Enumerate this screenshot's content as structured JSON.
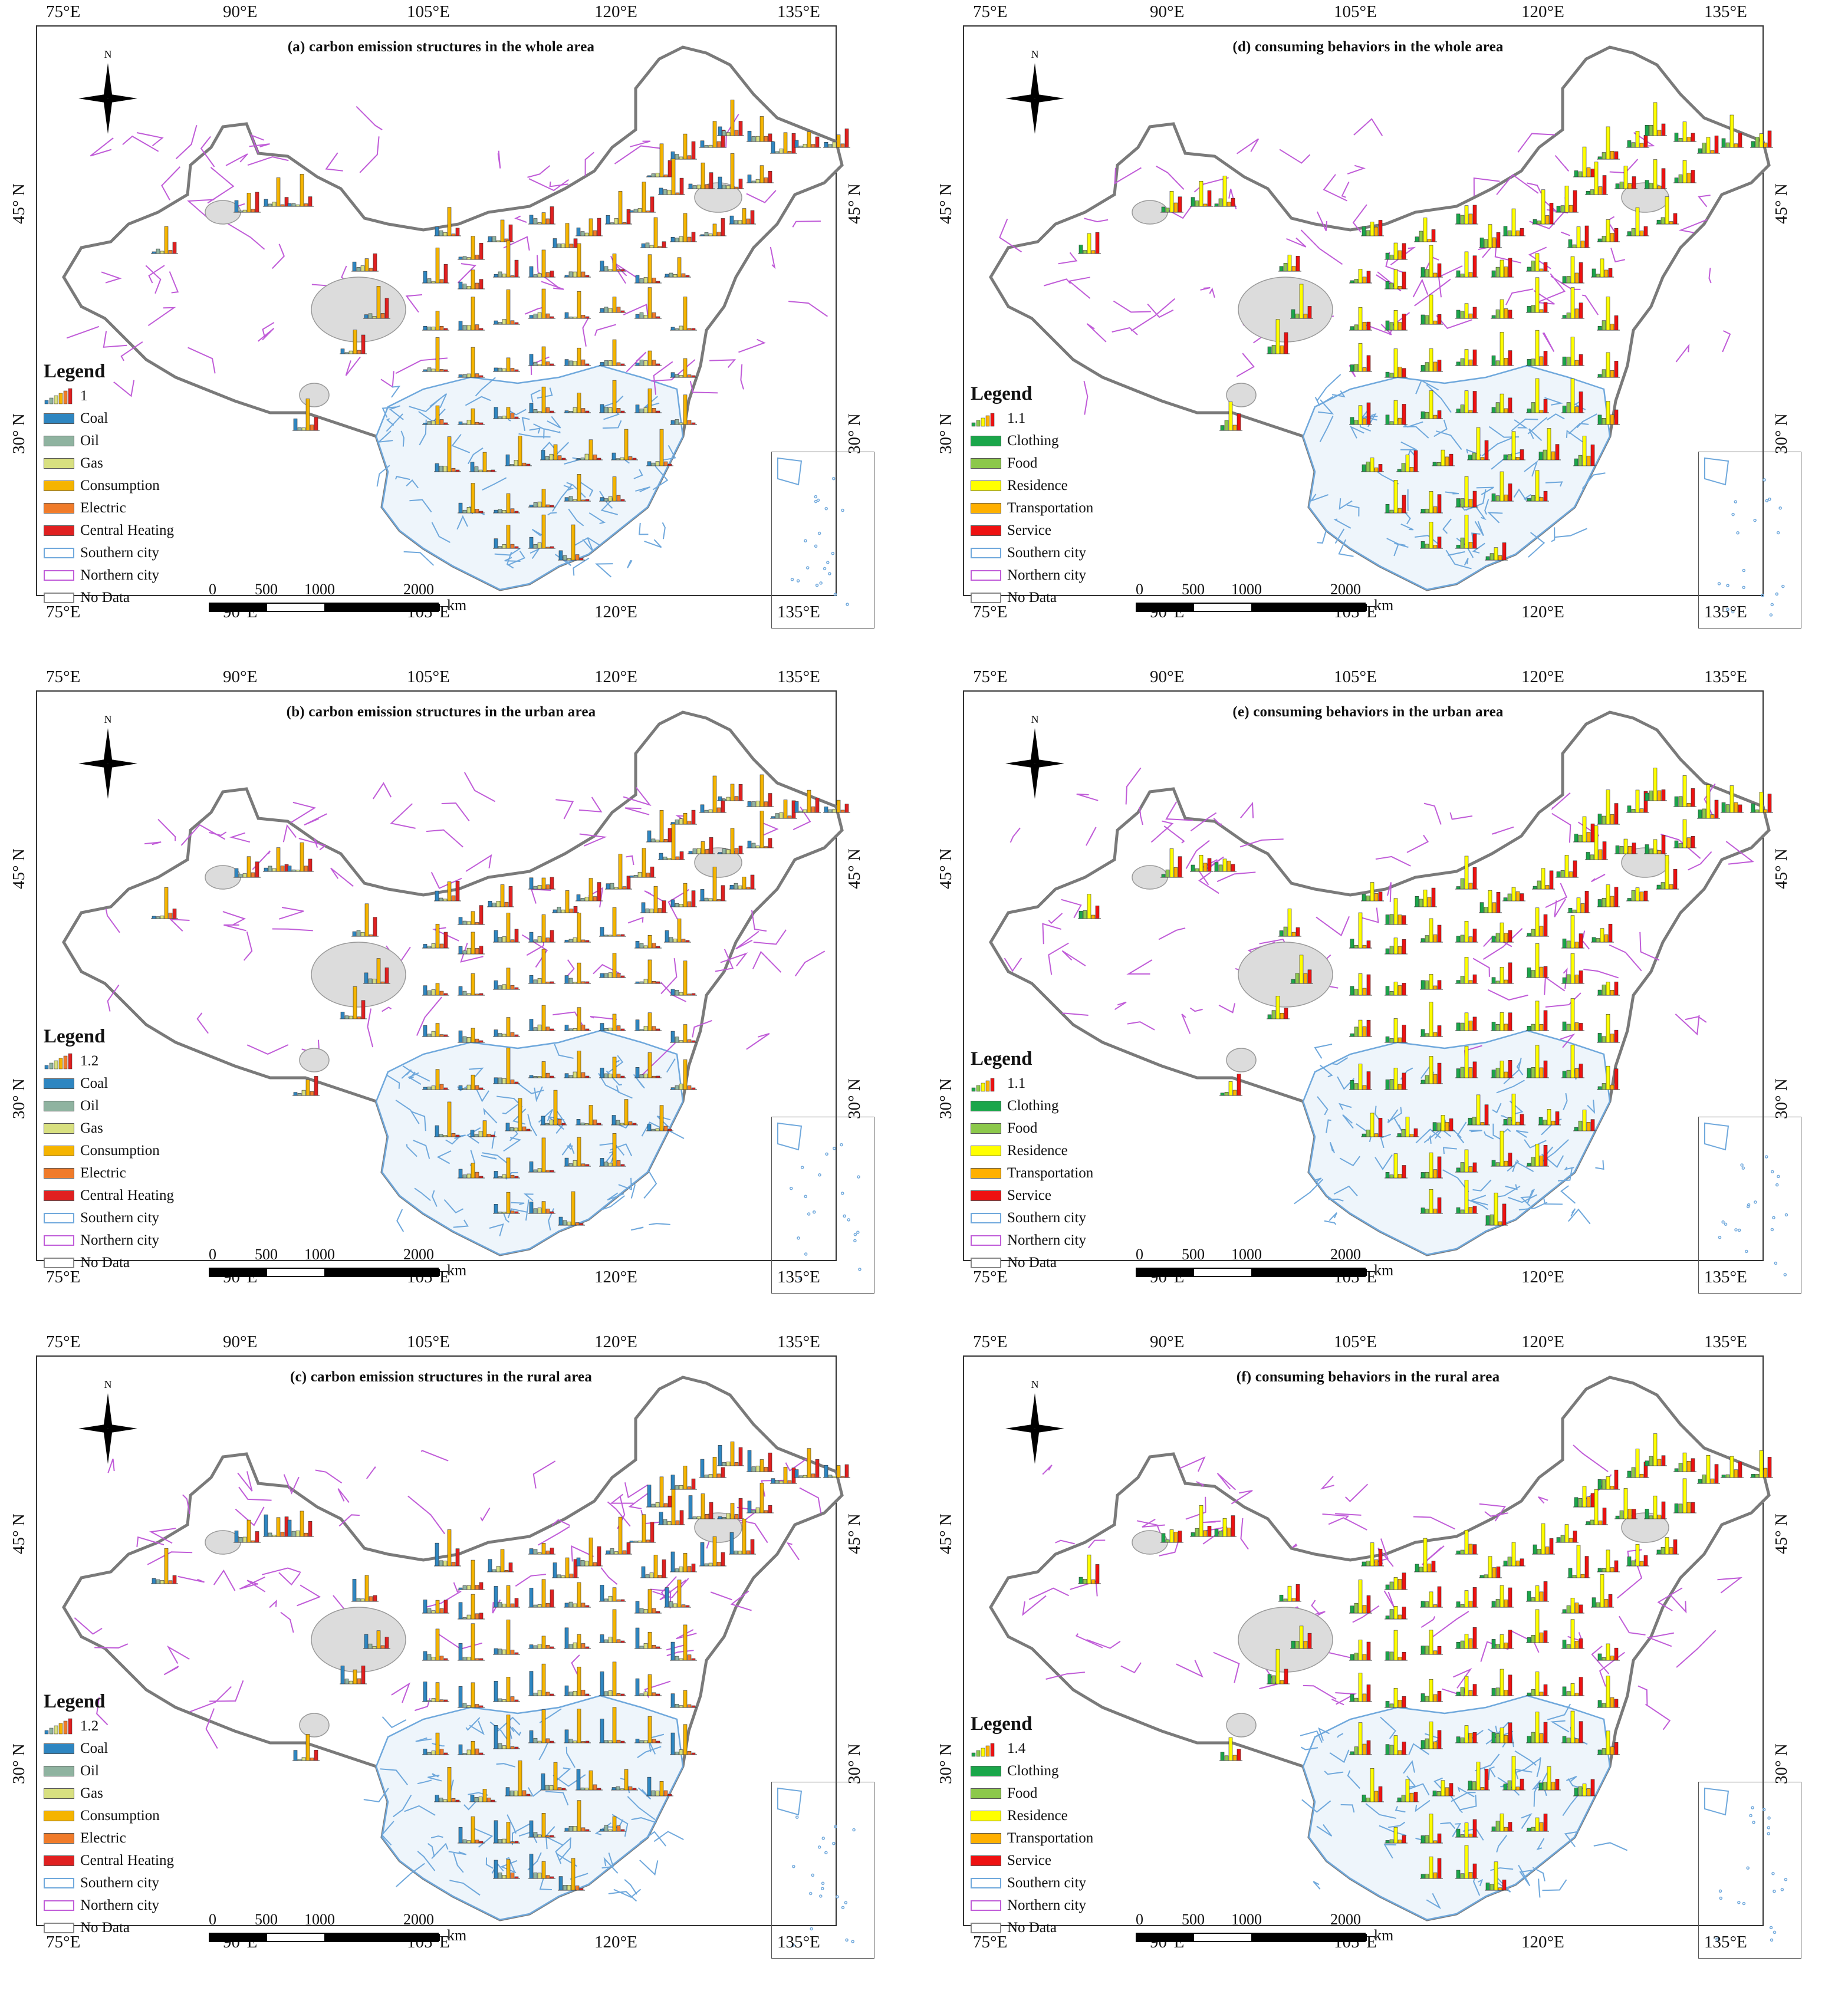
{
  "axes": {
    "longitude_ticks": [
      "75°E",
      "90°E",
      "105°E",
      "120°E",
      "135°E"
    ],
    "latitude_ticks": [
      "45° N",
      "30° N"
    ]
  },
  "colors": {
    "coal": "#2e86c1",
    "oil": "#8fb3a0",
    "gas": "#d8e080",
    "consumption": "#f5b400",
    "electric": "#f07b2a",
    "central_heating": "#e02020",
    "clothing": "#1aa64a",
    "food": "#8cc84b",
    "residence": "#ffff00",
    "transportation": "#ffb000",
    "service": "#ee1111",
    "southern_city": "#6fa8dc",
    "northern_city": "#c05cd8",
    "no_data": "#888888",
    "no_data_fill": "#dcdcdc"
  },
  "scale": {
    "numbers": [
      "0",
      "500",
      "1000",
      "2000"
    ],
    "unit": "km"
  },
  "north_label": "N",
  "panels": [
    {
      "title": "(a) carbon emission structures in the whole area",
      "legend_title": "Legend",
      "legend_value": "1",
      "items": [
        "Coal",
        "Oil",
        "Gas",
        "Consumption",
        "Electric",
        "Central Heating",
        "Southern city",
        "Northern city",
        "No Data"
      ]
    },
    {
      "title": "(d) consuming behaviors in the whole area",
      "legend_title": "Legend",
      "legend_value": "1.1",
      "items": [
        "Clothing",
        "Food",
        "Residence",
        "Transportation",
        "Service",
        "Southern city",
        "Northern city",
        "No Data"
      ]
    },
    {
      "title": "(b) carbon emission structures in the urban area",
      "legend_title": "Legend",
      "legend_value": "1.2",
      "items": [
        "Coal",
        "Oil",
        "Gas",
        "Consumption",
        "Electric",
        "Central Heating",
        "Southern city",
        "Northern city",
        "No Data"
      ]
    },
    {
      "title": "(e) consuming behaviors in the urban area",
      "legend_title": "Legend",
      "legend_value": "1.1",
      "items": [
        "Clothing",
        "Food",
        "Residence",
        "Transportation",
        "Service",
        "Southern city",
        "Northern city",
        "No Data"
      ]
    },
    {
      "title": "(c) carbon emission structures in the rural area",
      "legend_title": "Legend",
      "legend_value": "1.2",
      "items": [
        "Coal",
        "Oil",
        "Gas",
        "Consumption",
        "Electric",
        "Central Heating",
        "Southern city",
        "Northern city",
        "No Data"
      ]
    },
    {
      "title": "(f) consuming behaviors in the rural area",
      "legend_title": "Legend",
      "legend_value": "1.4",
      "items": [
        "Clothing",
        "Food",
        "Residence",
        "Transportation",
        "Service",
        "Southern city",
        "Northern city",
        "No Data"
      ]
    }
  ]
}
